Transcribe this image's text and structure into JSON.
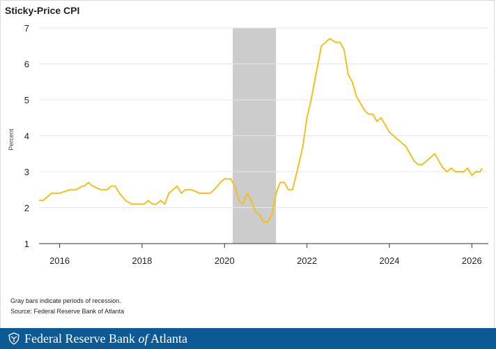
{
  "chart_data": {
    "type": "line",
    "title": "Sticky-Price CPI",
    "ylabel": "Percent",
    "xlabel": "",
    "ylim": [
      1,
      7
    ],
    "xlim": [
      2015.5,
      2026.4
    ],
    "y_ticks": [
      1,
      2,
      3,
      4,
      5,
      6,
      7
    ],
    "x_ticks": [
      2016,
      2018,
      2020,
      2022,
      2024,
      2026
    ],
    "grid": "horizontal",
    "line_color": "#f2c01c",
    "recession_color": "#cccccc",
    "recessions": [
      {
        "start": 2020.2,
        "end": 2021.25
      }
    ],
    "series": [
      {
        "name": "",
        "x": [
          2015.5,
          2015.6,
          2015.7,
          2015.8,
          2016.0,
          2016.25,
          2016.4,
          2016.55,
          2016.6,
          2016.7,
          2016.8,
          2017.0,
          2017.05,
          2017.15,
          2017.25,
          2017.35,
          2017.45,
          2017.6,
          2017.75,
          2017.95,
          2018.05,
          2018.15,
          2018.25,
          2018.35,
          2018.45,
          2018.55,
          2018.65,
          2018.75,
          2018.85,
          2018.95,
          2019.05,
          2019.2,
          2019.4,
          2019.55,
          2019.65,
          2019.75,
          2019.9,
          2020.0,
          2020.1,
          2020.15,
          2020.25,
          2020.35,
          2020.45,
          2020.55,
          2020.65,
          2020.75,
          2020.85,
          2020.95,
          2021.05,
          2021.15,
          2021.25,
          2021.35,
          2021.45,
          2021.55,
          2021.65,
          2021.8,
          2021.9,
          2022.0,
          2022.1,
          2022.2,
          2022.35,
          2022.45,
          2022.55,
          2022.7,
          2022.8,
          2022.9,
          2023.0,
          2023.1,
          2023.2,
          2023.3,
          2023.4,
          2023.5,
          2023.6,
          2023.7,
          2023.8,
          2023.9,
          2024.0,
          2024.1,
          2024.2,
          2024.3,
          2024.4,
          2024.5,
          2024.6,
          2024.7,
          2024.8,
          2024.9,
          2025.0,
          2025.1,
          2025.2,
          2025.3,
          2025.4,
          2025.5,
          2025.6,
          2025.7,
          2025.8,
          2025.9,
          2026.0,
          2026.1,
          2026.2,
          2026.25
        ],
        "values": [
          2.2,
          2.2,
          2.3,
          2.4,
          2.4,
          2.5,
          2.5,
          2.6,
          2.6,
          2.7,
          2.6,
          2.5,
          2.5,
          2.5,
          2.6,
          2.6,
          2.4,
          2.2,
          2.1,
          2.1,
          2.1,
          2.2,
          2.1,
          2.1,
          2.2,
          2.1,
          2.4,
          2.5,
          2.6,
          2.4,
          2.5,
          2.5,
          2.4,
          2.4,
          2.4,
          2.5,
          2.7,
          2.8,
          2.8,
          2.8,
          2.6,
          2.2,
          2.1,
          2.4,
          2.2,
          1.9,
          1.8,
          1.6,
          1.6,
          1.8,
          2.4,
          2.7,
          2.7,
          2.5,
          2.5,
          3.2,
          3.7,
          4.5,
          5.0,
          5.6,
          6.5,
          6.6,
          6.7,
          6.6,
          6.6,
          6.4,
          5.7,
          5.5,
          5.1,
          4.9,
          4.7,
          4.6,
          4.6,
          4.4,
          4.5,
          4.3,
          4.1,
          4.0,
          3.9,
          3.8,
          3.7,
          3.5,
          3.3,
          3.2,
          3.2,
          3.3,
          3.4,
          3.5,
          3.3,
          3.1,
          3.0,
          3.1,
          3.0,
          3.0,
          3.0,
          3.1,
          2.9,
          3.0,
          3.0,
          3.1
        ]
      }
    ]
  },
  "notes": {
    "line1": "Gray bars indicate periods of recession.",
    "line2": "Source: Federal Reserve Bank of Atlanta"
  },
  "footer": {
    "text_before": "Federal Reserve Bank ",
    "text_of": "of",
    "text_after": " Atlanta",
    "logo_icon": "eagle-shield-icon"
  }
}
